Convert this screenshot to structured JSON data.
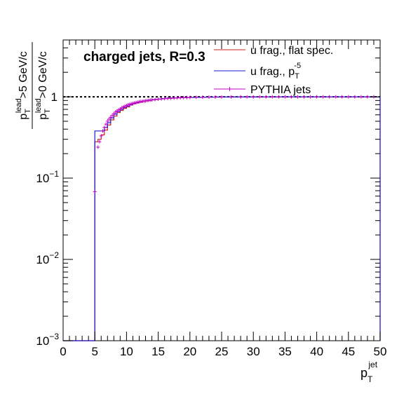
{
  "chart_data": {
    "type": "line",
    "title": "charged jets, R=0.3",
    "x_axis": {
      "range": [
        0,
        50
      ],
      "ticks": [
        "0",
        "5",
        "10",
        "15",
        "20",
        "25",
        "30",
        "35",
        "40",
        "45",
        "50"
      ],
      "label_base": "p",
      "label_sub": "T",
      "label_sup": "jet"
    },
    "y_axis": {
      "scale": "log",
      "range": [
        0.001,
        5
      ],
      "ticks": [
        {
          "value": 1,
          "base": "1",
          "exp": ""
        },
        {
          "value": 0.1,
          "base": "10",
          "exp": "−1"
        },
        {
          "value": 0.01,
          "base": "10",
          "exp": "−2"
        },
        {
          "value": 0.001,
          "base": "10",
          "exp": "−3"
        }
      ],
      "label_num": {
        "p": "p",
        "sup": "lead",
        "sub": "T",
        "rest": ">5 GeV/c"
      },
      "label_den": {
        "p": "p",
        "sup": "lead",
        "sub": "T",
        "rest": ">0 GeV/c"
      }
    },
    "reference_line": {
      "y": 1,
      "style": "dotted"
    },
    "legend_position": "top-right",
    "series": [
      {
        "name": "u frag., flat spec.",
        "style": "step",
        "color": "#d02020",
        "bin_width": 0.5,
        "x_start": 0,
        "values": [
          0.001,
          0.001,
          0.001,
          0.001,
          0.001,
          0.001,
          0.001,
          0.001,
          0.001,
          0.001,
          0.28,
          0.3,
          0.34,
          0.39,
          0.45,
          0.52,
          0.58,
          0.64,
          0.68,
          0.72,
          0.75,
          0.79,
          0.82,
          0.84,
          0.86,
          0.88,
          0.89,
          0.905,
          0.915,
          0.925,
          0.935,
          0.945,
          0.95,
          0.955,
          0.96,
          0.965,
          0.97,
          0.973,
          0.976,
          0.978,
          0.98,
          0.982,
          0.984,
          0.986,
          0.988,
          0.99,
          0.99,
          0.99,
          0.991,
          0.992,
          0.993,
          0.993,
          0.994,
          0.994,
          0.995,
          0.995,
          0.995,
          0.996,
          0.996,
          0.996,
          0.997,
          0.997,
          0.997,
          0.997,
          0.998,
          0.998,
          0.998,
          0.998,
          0.998,
          0.998,
          0.998,
          0.998,
          0.999,
          0.999,
          0.999,
          0.999,
          0.999,
          0.999,
          0.999,
          0.999,
          0.999,
          0.999,
          0.999,
          0.999,
          0.999,
          0.999,
          0.999,
          0.999,
          0.999,
          0.999,
          0.999,
          0.999,
          0.999,
          0.999,
          0.999,
          0.999,
          0.999,
          0.999,
          0.999,
          0.999
        ]
      },
      {
        "name": "u frag., p_T^-5",
        "legend_main": "u frag., p",
        "legend_sub": "T",
        "legend_sup": "-5",
        "style": "step",
        "color": "#1a1ad6",
        "bin_width": 0.5,
        "x_start": 0,
        "values": [
          0.001,
          0.001,
          0.001,
          0.001,
          0.001,
          0.001,
          0.001,
          0.001,
          0.001,
          0.001,
          0.38,
          0.38,
          0.38,
          0.42,
          0.48,
          0.55,
          0.61,
          0.66,
          0.7,
          0.74,
          0.77,
          0.8,
          0.83,
          0.85,
          0.87,
          0.89,
          0.9,
          0.915,
          0.925,
          0.935,
          0.94,
          0.95,
          0.955,
          0.96,
          0.965,
          0.97,
          0.973,
          0.976,
          0.979,
          0.981,
          0.983,
          0.985,
          0.987,
          0.988,
          0.99,
          0.99,
          0.991,
          0.992,
          0.993,
          0.993,
          0.994,
          0.994,
          0.995,
          0.995,
          0.996,
          0.996,
          0.996,
          0.997,
          0.997,
          0.997,
          0.997,
          0.998,
          0.998,
          0.998,
          0.998,
          0.998,
          0.998,
          0.998,
          0.999,
          0.999,
          0.999,
          0.999,
          0.999,
          0.999,
          0.999,
          0.999,
          0.999,
          0.999,
          0.999,
          0.999,
          0.999,
          0.999,
          0.999,
          0.999,
          0.999,
          0.999,
          0.999,
          0.999,
          0.999,
          0.999,
          0.999,
          0.999,
          0.999,
          0.999,
          0.999,
          0.999,
          0.999,
          0.999,
          0.999,
          0.999
        ]
      },
      {
        "name": "PYTHIA jets",
        "style": "markers",
        "color": "#cc00cc",
        "x": [
          5.0,
          5.5,
          5.75,
          6.0,
          6.25,
          6.5,
          6.75,
          7.0,
          7.25,
          7.5,
          7.75,
          8.0,
          8.25,
          8.5,
          8.75,
          9.0,
          9.25,
          9.5,
          9.75,
          10.0,
          10.25,
          10.5,
          10.75,
          11.0,
          11.25,
          11.5,
          11.75,
          12.0,
          12.25,
          12.5,
          12.75,
          13.0,
          13.25,
          13.5,
          13.75,
          14.0,
          14.5,
          15.0,
          15.5,
          16.0,
          16.5,
          17.0,
          17.5,
          18.0,
          18.5,
          19.0,
          19.5,
          20.0,
          21.0,
          22.0,
          23.0,
          24.0,
          25.0,
          26.5,
          28.0,
          29.0,
          30.0,
          31.0,
          32.0,
          33.0,
          34.0,
          35.0,
          36.0,
          37.0,
          38.0,
          39.0,
          40.0,
          41.0,
          42.0,
          43.0,
          44.0,
          45.0,
          46.0,
          47.0,
          48.0,
          49.0
        ],
        "y": [
          0.068,
          0.24,
          0.28,
          0.33,
          0.38,
          0.42,
          0.46,
          0.5,
          0.53,
          0.56,
          0.59,
          0.62,
          0.65,
          0.67,
          0.69,
          0.71,
          0.73,
          0.75,
          0.77,
          0.78,
          0.8,
          0.81,
          0.82,
          0.83,
          0.84,
          0.85,
          0.86,
          0.87,
          0.875,
          0.88,
          0.885,
          0.89,
          0.9,
          0.905,
          0.91,
          0.915,
          0.925,
          0.935,
          0.94,
          0.95,
          0.955,
          0.96,
          0.965,
          0.97,
          0.973,
          0.976,
          0.979,
          0.982,
          0.985,
          0.988,
          0.99,
          0.992,
          0.994,
          0.995,
          0.996,
          0.997,
          0.997,
          0.998,
          0.998,
          0.998,
          0.999,
          0.999,
          0.999,
          0.999,
          0.999,
          0.999,
          0.999,
          0.999,
          0.999,
          0.999,
          0.999,
          0.999,
          0.999,
          0.999,
          0.999,
          0.999
        ]
      }
    ]
  }
}
